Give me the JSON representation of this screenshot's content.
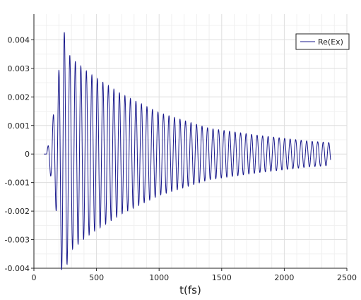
{
  "chart_data": {
    "type": "line",
    "title": "",
    "xlabel": "t(fs)",
    "ylabel": "",
    "xlim": [
      0,
      2500
    ],
    "ylim": [
      -0.004,
      0.0049
    ],
    "x_ticks": [
      0,
      500,
      1000,
      1500,
      2000,
      2500
    ],
    "x_tick_labels": [
      "0",
      "500",
      "1000",
      "1500",
      "2000",
      "2500"
    ],
    "y_ticks": [
      -0.004,
      -0.003,
      -0.002,
      -0.001,
      0,
      0.001,
      0.002,
      0.003,
      0.004
    ],
    "y_tick_labels": [
      "-0.004",
      "-0.003",
      "-0.002",
      "-0.001",
      "0",
      "0.001",
      "0.002",
      "0.003",
      "0.004"
    ],
    "grid": true,
    "legend_position": "top-right",
    "series": [
      {
        "name": "Re(Ex)",
        "color": "#1a1a8c",
        "oscillation_period_fs": 44,
        "x": [
          100,
          135,
          185,
          230,
          290,
          450,
          700,
          1000,
          1400,
          1800,
          2200,
          2370
        ],
        "envelope": [
          0,
          0.0008,
          0.0022,
          0.0045,
          0.0034,
          0.0028,
          0.0021,
          0.00145,
          0.0009,
          0.00065,
          0.00045,
          0.0004
        ]
      }
    ]
  }
}
